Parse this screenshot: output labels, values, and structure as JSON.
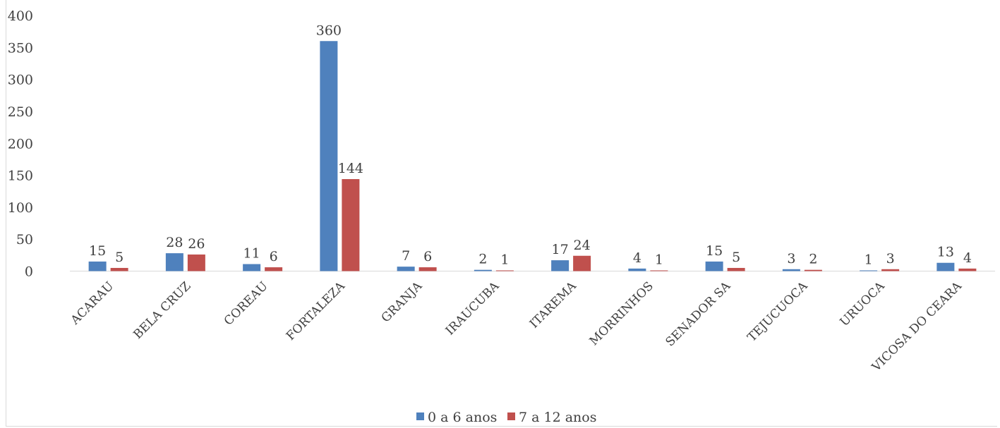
{
  "chart_data": {
    "type": "bar",
    "categories": [
      "ACARAU",
      "BELA CRUZ",
      "COREAU",
      "FORTALEZA",
      "GRANJA",
      "IRAUCUBA",
      "ITAREMA",
      "MORRINHOS",
      "SENADOR SA",
      "TEJUCUOCA",
      "URUOCA",
      "VICOSA DO CEARA"
    ],
    "series": [
      {
        "name": "0 a 6 anos",
        "color": "#4f81bd",
        "values": [
          15,
          28,
          11,
          360,
          7,
          2,
          17,
          4,
          15,
          3,
          1,
          13
        ]
      },
      {
        "name": "7 a 12 anos",
        "color": "#c0504d",
        "values": [
          5,
          26,
          6,
          144,
          6,
          1,
          24,
          1,
          5,
          2,
          3,
          4
        ]
      }
    ],
    "ylim": [
      0,
      400
    ],
    "yticks": [
      0,
      50,
      100,
      150,
      200,
      250,
      300,
      350,
      400
    ],
    "grid": false,
    "legend_position": "bottom"
  }
}
